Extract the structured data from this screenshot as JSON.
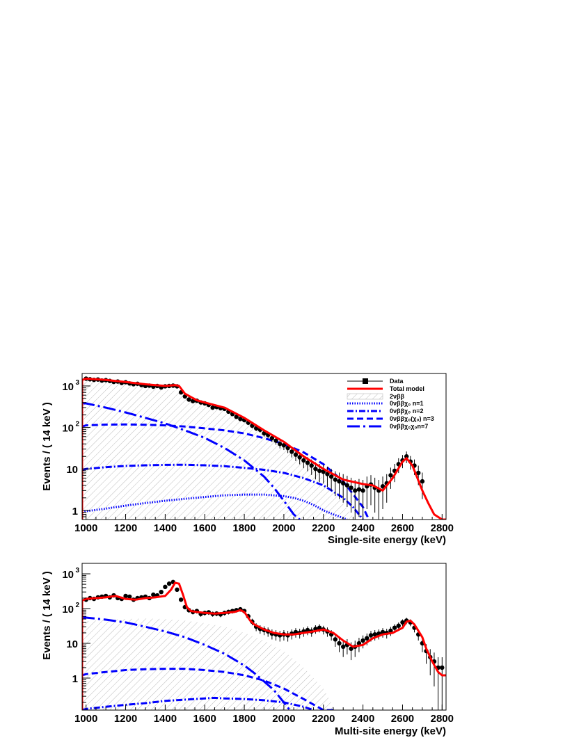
{
  "chart_data": [
    {
      "type": "line",
      "ylabel": "Events / ( 14 keV )",
      "xlabel": "Single-site energy (keV)",
      "log_y": true,
      "xlim": [
        980,
        2820
      ],
      "ylim": [
        0.6,
        2000
      ],
      "x_ticks": [
        1000,
        1200,
        1400,
        1600,
        1800,
        2000,
        2200,
        2400,
        2600,
        2800
      ],
      "y_ticks": [
        {
          "value": 1,
          "label": "1"
        },
        {
          "value": 10,
          "label": "10"
        },
        {
          "value": 100,
          "label": "10",
          "sup": "2"
        },
        {
          "value": 1000,
          "label": "10",
          "sup": "3"
        }
      ],
      "legend": {
        "placement": "top-right",
        "entries": [
          {
            "label": "Data",
            "style": "marker"
          },
          {
            "label": "Total model",
            "style": "red-line"
          },
          {
            "label": "2νββ",
            "style": "hatch"
          },
          {
            "label": "0νββχ₀ n=1",
            "style": "dotted"
          },
          {
            "label": "0νββχ₀ n=2",
            "style": "dashdot"
          },
          {
            "label": "0νββχ₀(χ₀) n=3",
            "style": "dashed"
          },
          {
            "label": "0νββχ₀χ₀n=7",
            "style": "longdashdot"
          }
        ]
      },
      "series": [
        {
          "key": "total",
          "x": [
            980,
            1000,
            1100,
            1200,
            1300,
            1350,
            1400,
            1450,
            1470,
            1500,
            1560,
            1600,
            1700,
            1800,
            1900,
            2000,
            2100,
            2200,
            2300,
            2400,
            2450,
            2500,
            2550,
            2600,
            2620,
            2650,
            2700,
            2730,
            2760,
            2800,
            2820
          ],
          "y": [
            1400,
            1500,
            1400,
            1250,
            1100,
            1050,
            1000,
            1050,
            1000,
            650,
            450,
            400,
            300,
            170,
            85,
            45,
            20,
            10,
            5.5,
            4.3,
            4.0,
            3.0,
            6.0,
            15,
            18,
            12,
            3,
            1.5,
            0.8,
            0.6,
            0.6
          ]
        },
        {
          "key": "data",
          "x": [
            1000,
            1020,
            1040,
            1060,
            1080,
            1100,
            1120,
            1140,
            1160,
            1180,
            1200,
            1220,
            1240,
            1260,
            1280,
            1300,
            1320,
            1340,
            1360,
            1380,
            1400,
            1420,
            1440,
            1460,
            1480,
            1500,
            1520,
            1540,
            1560,
            1580,
            1600,
            1620,
            1640,
            1660,
            1680,
            1700,
            1720,
            1740,
            1760,
            1780,
            1800,
            1820,
            1840,
            1860,
            1880,
            1900,
            1920,
            1940,
            1960,
            1980,
            2000,
            2020,
            2040,
            2060,
            2080,
            2100,
            2120,
            2140,
            2160,
            2180,
            2200,
            2220,
            2240,
            2260,
            2280,
            2300,
            2320,
            2340,
            2360,
            2380,
            2400,
            2420,
            2440,
            2460,
            2480,
            2500,
            2520,
            2540,
            2560,
            2580,
            2600,
            2620,
            2640,
            2660,
            2680,
            2700
          ],
          "y": [
            1500,
            1450,
            1400,
            1430,
            1350,
            1380,
            1320,
            1250,
            1280,
            1180,
            1230,
            1150,
            1100,
            1130,
            1050,
            1000,
            1020,
            960,
            1000,
            920,
            980,
            1000,
            1020,
            980,
            700,
            560,
            470,
            430,
            440,
            400,
            380,
            350,
            300,
            310,
            290,
            280,
            240,
            210,
            180,
            160,
            150,
            130,
            110,
            95,
            88,
            72,
            66,
            55,
            48,
            40,
            37,
            32,
            26,
            22,
            19,
            16,
            14,
            12,
            10,
            9,
            8.5,
            7.5,
            6.5,
            5.5,
            5.0,
            4.5,
            4.0,
            3.5,
            3.0,
            3.2,
            3.0,
            3.8,
            4.2,
            3.5,
            3.0,
            3.8,
            4.5,
            7.0,
            9.0,
            13,
            16,
            20,
            15,
            12,
            8,
            5
          ]
        },
        {
          "key": "n1",
          "x": [
            980,
            1000,
            1100,
            1200,
            1300,
            1400,
            1500,
            1600,
            1700,
            1800,
            1900,
            2000,
            2050,
            2100,
            2150,
            2200,
            2250,
            2300,
            2320
          ],
          "y": [
            0.9,
            0.95,
            1.1,
            1.3,
            1.5,
            1.7,
            1.9,
            2.1,
            2.3,
            2.4,
            2.4,
            2.2,
            2.0,
            1.7,
            1.35,
            1.0,
            0.8,
            0.65,
            0.6
          ]
        },
        {
          "key": "n2",
          "x": [
            980,
            1000,
            1100,
            1200,
            1300,
            1400,
            1500,
            1600,
            1700,
            1800,
            1900,
            2000,
            2100,
            2200,
            2300,
            2350,
            2400
          ],
          "y": [
            9.5,
            10,
            11,
            11.8,
            12.2,
            12.5,
            12.6,
            12.2,
            11.6,
            10.6,
            9.5,
            8.0,
            6.0,
            4.0,
            2.0,
            1.2,
            0.6
          ]
        },
        {
          "key": "n3",
          "x": [
            980,
            1000,
            1100,
            1200,
            1300,
            1400,
            1500,
            1600,
            1700,
            1800,
            1900,
            2000,
            2100,
            2200,
            2300,
            2400,
            2430
          ],
          "y": [
            105,
            112,
            117,
            118,
            116,
            112,
            105,
            95,
            85,
            72,
            55,
            40,
            25,
            13,
            5,
            1.2,
            0.6
          ]
        },
        {
          "key": "n7",
          "x": [
            980,
            1000,
            1100,
            1200,
            1300,
            1400,
            1500,
            1600,
            1700,
            1800,
            1900,
            1950,
            2000,
            2050,
            2080
          ],
          "y": [
            380,
            380,
            300,
            230,
            170,
            125,
            85,
            56,
            32,
            16,
            6.5,
            3.5,
            1.7,
            0.8,
            0.6
          ]
        },
        {
          "key": "two_nu",
          "x": [
            980,
            1000,
            1100,
            1200,
            1300,
            1400,
            1500,
            1600,
            1700,
            1800,
            1900,
            2000,
            2100,
            2200,
            2300,
            2360
          ],
          "y": [
            1400,
            1450,
            1380,
            1200,
            1020,
            880,
            660,
            420,
            280,
            160,
            85,
            42,
            17,
            6,
            1.5,
            0.6
          ]
        }
      ]
    },
    {
      "type": "line",
      "ylabel": "Events / ( 14 keV )",
      "xlabel": "Multi-site energy (keV)",
      "log_y": true,
      "xlim": [
        980,
        2820
      ],
      "ylim": [
        0.12,
        2000
      ],
      "x_ticks": [
        1000,
        1200,
        1400,
        1600,
        1800,
        2000,
        2200,
        2400,
        2600,
        2800
      ],
      "y_ticks": [
        {
          "value": 1,
          "label": "1"
        },
        {
          "value": 10,
          "label": "10"
        },
        {
          "value": 100,
          "label": "10",
          "sup": "2"
        },
        {
          "value": 1000,
          "label": "10",
          "sup": "3"
        }
      ],
      "series": [
        {
          "key": "total",
          "x": [
            980,
            1000,
            1050,
            1100,
            1150,
            1200,
            1250,
            1300,
            1350,
            1400,
            1430,
            1450,
            1470,
            1490,
            1510,
            1530,
            1560,
            1600,
            1650,
            1700,
            1750,
            1780,
            1800,
            1830,
            1850,
            1900,
            1950,
            2000,
            2050,
            2100,
            2150,
            2200,
            2250,
            2300,
            2350,
            2400,
            2450,
            2500,
            2550,
            2600,
            2620,
            2640,
            2660,
            2700,
            2720,
            2750,
            2780,
            2800,
            2820
          ],
          "y": [
            170,
            190,
            200,
            210,
            230,
            190,
            180,
            200,
            210,
            230,
            350,
            550,
            520,
            250,
            110,
            85,
            80,
            75,
            72,
            75,
            80,
            90,
            80,
            45,
            35,
            25,
            20,
            18,
            18,
            20,
            22,
            25,
            20,
            12,
            8,
            9,
            14,
            18,
            20,
            28,
            42,
            45,
            35,
            15,
            7,
            3,
            1.5,
            1.2,
            1.2
          ]
        },
        {
          "key": "data",
          "x": [
            1000,
            1020,
            1040,
            1060,
            1080,
            1100,
            1120,
            1140,
            1160,
            1180,
            1200,
            1220,
            1240,
            1260,
            1280,
            1300,
            1320,
            1340,
            1360,
            1380,
            1400,
            1420,
            1440,
            1460,
            1480,
            1500,
            1520,
            1540,
            1560,
            1580,
            1600,
            1620,
            1640,
            1660,
            1680,
            1700,
            1720,
            1740,
            1760,
            1780,
            1800,
            1820,
            1840,
            1860,
            1880,
            1900,
            1920,
            1940,
            1960,
            1980,
            2000,
            2020,
            2040,
            2060,
            2080,
            2100,
            2120,
            2140,
            2160,
            2180,
            2200,
            2220,
            2240,
            2260,
            2280,
            2300,
            2320,
            2340,
            2360,
            2380,
            2400,
            2420,
            2440,
            2460,
            2480,
            2500,
            2520,
            2540,
            2560,
            2580,
            2600,
            2620,
            2640,
            2660,
            2680,
            2700,
            2720,
            2740,
            2760,
            2780,
            2800
          ],
          "y": [
            180,
            200,
            190,
            210,
            220,
            230,
            210,
            240,
            200,
            190,
            230,
            220,
            180,
            200,
            210,
            220,
            200,
            250,
            240,
            300,
            420,
            520,
            580,
            350,
            180,
            110,
            90,
            80,
            85,
            70,
            75,
            78,
            70,
            72,
            68,
            75,
            80,
            85,
            90,
            95,
            85,
            60,
            42,
            30,
            26,
            24,
            22,
            19,
            18,
            17,
            18,
            17,
            19,
            21,
            20,
            22,
            24,
            22,
            26,
            28,
            25,
            22,
            18,
            13,
            10,
            8,
            9,
            7,
            8,
            10,
            12,
            14,
            17,
            18,
            19,
            21,
            20,
            23,
            28,
            32,
            40,
            45,
            40,
            28,
            18,
            10,
            6,
            4,
            3,
            2,
            2
          ]
        },
        {
          "key": "n2",
          "x": [
            980,
            1000,
            1100,
            1200,
            1300,
            1400,
            1500,
            1600,
            1650,
            1700,
            1800,
            1900,
            2000,
            2100,
            2150
          ],
          "y": [
            0.12,
            0.13,
            0.15,
            0.17,
            0.19,
            0.22,
            0.24,
            0.26,
            0.27,
            0.26,
            0.25,
            0.23,
            0.2,
            0.15,
            0.12
          ]
        },
        {
          "key": "n3",
          "x": [
            980,
            1000,
            1100,
            1200,
            1300,
            1400,
            1500,
            1600,
            1700,
            1800,
            1900,
            2000,
            2100,
            2200,
            2250
          ],
          "y": [
            1.2,
            1.3,
            1.5,
            1.7,
            1.8,
            1.85,
            1.85,
            1.7,
            1.5,
            1.2,
            0.85,
            0.5,
            0.25,
            0.12,
            0.12
          ]
        },
        {
          "key": "n7",
          "x": [
            980,
            1000,
            1100,
            1200,
            1300,
            1400,
            1500,
            1600,
            1700,
            1800,
            1850,
            1900,
            1950,
            2000,
            2030
          ],
          "y": [
            55,
            55,
            48,
            40,
            30,
            22,
            15,
            9,
            5,
            2.3,
            1.4,
            0.8,
            0.45,
            0.2,
            0.12
          ]
        },
        {
          "key": "two_nu",
          "x": [
            980,
            1000,
            1100,
            1200,
            1300,
            1400,
            1500,
            1600,
            1700,
            1800,
            1900,
            2000,
            2100,
            2200,
            2260
          ],
          "y": [
            40,
            43,
            48,
            50,
            52,
            50,
            45,
            38,
            30,
            20,
            12,
            6,
            2,
            0.5,
            0.12
          ]
        }
      ]
    }
  ]
}
